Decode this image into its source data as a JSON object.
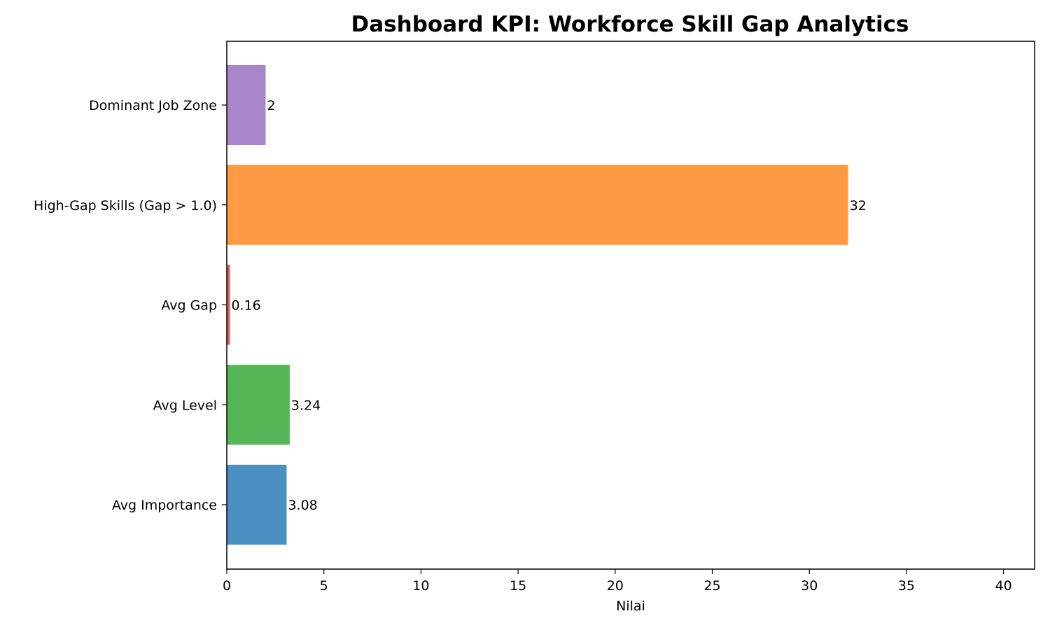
{
  "chart_data": {
    "type": "bar",
    "orientation": "horizontal",
    "title": "Dashboard KPI: Workforce Skill Gap Analytics",
    "xlabel": "Nilai",
    "ylabel": "",
    "xlim": [
      0,
      41.6
    ],
    "x_ticks": [
      0,
      5,
      10,
      15,
      20,
      25,
      30,
      35,
      40
    ],
    "x_tick_labels": [
      "0",
      "5",
      "10",
      "15",
      "20",
      "25",
      "30",
      "35",
      "40"
    ],
    "grid": false,
    "categories": [
      "Avg Importance",
      "Avg Level",
      "Avg Gap",
      "High-Gap Skills (Gap > 1.0)",
      "Dominant Job Zone"
    ],
    "values": [
      3.08,
      3.24,
      0.16,
      32,
      2
    ],
    "value_labels": [
      "3.08",
      "3.24",
      "0.16",
      "32",
      "2"
    ],
    "colors": [
      "#4a90c2",
      "#56b556",
      "#e15b5b",
      "#ff9a42",
      "#a986c9"
    ]
  }
}
